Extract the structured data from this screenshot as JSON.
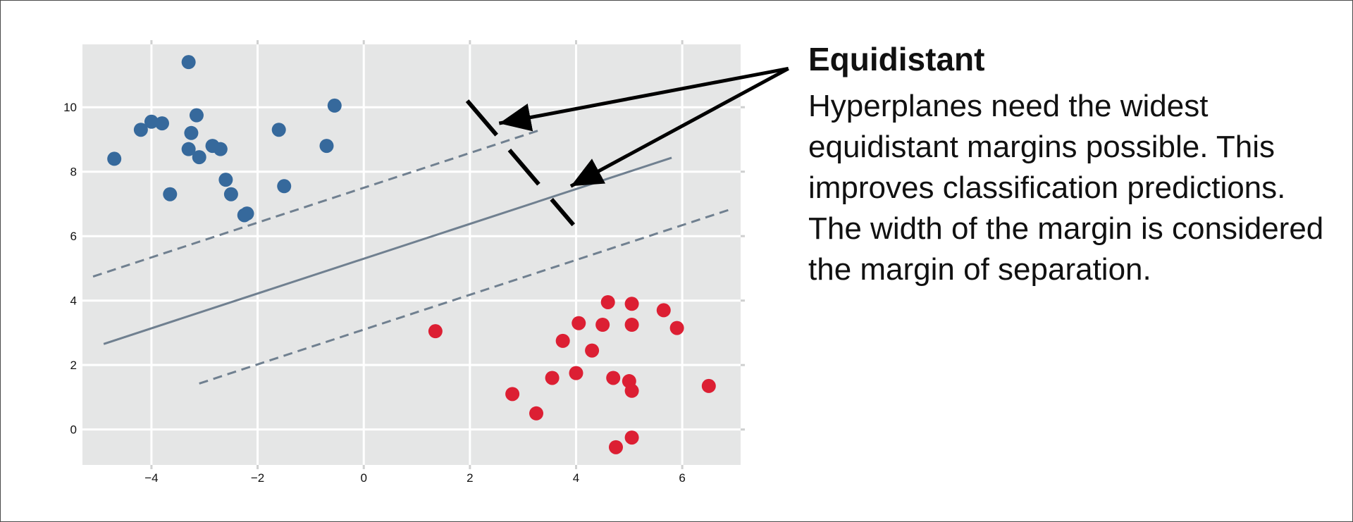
{
  "colors": {
    "plot_bg": "#e5e6e6",
    "grid": "#ffffff",
    "class_a": "#36699c",
    "class_b": "#dc1f33",
    "hyperplane": "#708090",
    "margin": "#708090",
    "annotation": "#000000",
    "text": "#111111"
  },
  "panel": {
    "title": "Equidistant",
    "body": "Hyperplanes need the widest equidistant margins possible. This improves classification predictions. The width of the margin is considered the margin of separation."
  },
  "chart_data": {
    "type": "scatter",
    "title": "",
    "xlabel": "",
    "ylabel": "",
    "xlim": [
      -5.3,
      7.1
    ],
    "ylim": [
      -1.1,
      11.95
    ],
    "xticks": [
      -4,
      -2,
      0,
      2,
      4,
      6
    ],
    "xtick_labels": [
      "−4",
      "−2",
      "0",
      "2",
      "4",
      "6"
    ],
    "yticks": [
      0,
      2,
      4,
      6,
      8,
      10
    ],
    "ytick_labels": [
      "0",
      "2",
      "4",
      "6",
      "8",
      "10"
    ],
    "grid": true,
    "series": [
      {
        "color": "#36699c",
        "points": [
          [
            -4.7,
            8.4
          ],
          [
            -4.2,
            9.3
          ],
          [
            -4.0,
            9.55
          ],
          [
            -3.8,
            9.5
          ],
          [
            -3.65,
            7.3
          ],
          [
            -3.3,
            11.4
          ],
          [
            -3.3,
            8.7
          ],
          [
            -3.25,
            9.2
          ],
          [
            -3.15,
            9.75
          ],
          [
            -3.1,
            8.45
          ],
          [
            -2.85,
            8.8
          ],
          [
            -2.7,
            8.7
          ],
          [
            -2.6,
            7.75
          ],
          [
            -2.5,
            7.3
          ],
          [
            -2.25,
            6.65
          ],
          [
            -2.2,
            6.7
          ],
          [
            -1.6,
            9.3
          ],
          [
            -1.5,
            7.55
          ],
          [
            -0.7,
            8.8
          ],
          [
            -0.55,
            10.05
          ]
        ]
      },
      {
        "color": "#dc1f33",
        "points": [
          [
            1.35,
            3.05
          ],
          [
            2.8,
            1.1
          ],
          [
            3.25,
            0.5
          ],
          [
            3.55,
            1.6
          ],
          [
            3.75,
            2.75
          ],
          [
            4.0,
            1.75
          ],
          [
            4.05,
            3.3
          ],
          [
            4.3,
            2.45
          ],
          [
            4.5,
            3.25
          ],
          [
            4.6,
            3.95
          ],
          [
            4.7,
            1.6
          ],
          [
            4.75,
            -0.55
          ],
          [
            5.0,
            1.5
          ],
          [
            5.05,
            3.9
          ],
          [
            5.05,
            3.25
          ],
          [
            5.05,
            1.2
          ],
          [
            5.05,
            -0.25
          ],
          [
            5.65,
            3.7
          ],
          [
            5.9,
            3.15
          ],
          [
            6.5,
            1.35
          ]
        ]
      }
    ],
    "decision_boundary": {
      "slope": 0.54,
      "intercept": 5.3,
      "margin_offset": 2.2,
      "x_range": [
        -4.9,
        5.8
      ],
      "upper_x_range": [
        -5.1,
        3.3
      ],
      "lower_x_range": [
        -3.1,
        6.9
      ]
    },
    "annotation": {
      "margin_width_line": [
        [
          1.95,
          10.2
        ],
        [
          3.95,
          6.35
        ]
      ],
      "arrow_tail": [
        8.0,
        11.2
      ],
      "arrow_heads": [
        [
          2.55,
          9.5
        ],
        [
          3.9,
          7.55
        ]
      ]
    }
  }
}
